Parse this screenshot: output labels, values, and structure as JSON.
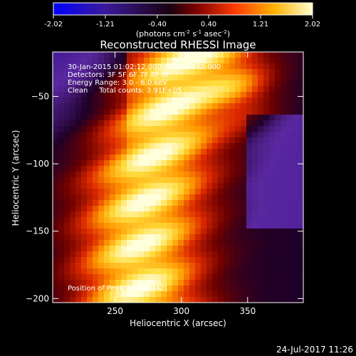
{
  "chart_data": {
    "type": "heatmap",
    "title": "Reconstructed RHESSI Image",
    "xlabel": "Heliocentric X (arcsec)",
    "ylabel": "Heliocentric Y (arcsec)",
    "x_range": [
      203,
      392
    ],
    "y_range": [
      -203,
      -17
    ],
    "x_ticks": [
      250,
      300,
      350
    ],
    "y_ticks": [
      -50,
      -100,
      -150,
      -200
    ],
    "colorbar": {
      "min": -2.02,
      "max": 2.02,
      "ticks": [
        "-2.02",
        "-1.21",
        "-0.40",
        "0.40",
        "1.21",
        "2.02"
      ],
      "label": "(photons cm",
      "label_sup1": "-2",
      "label_mid": " s",
      "label_sup2": "-1",
      "label_mid2": " asec",
      "label_sup3": "-2",
      "label_end": ")"
    },
    "annotations": {
      "line1": "30-Jan-2015 01:02:12.000 to 01:02:12.000",
      "line2": "Detectors: 3F 5F 6F 7F 8F 9F",
      "line3": "Energy Range: 3.0 - 6.0 keV",
      "line4": "Clean     Total counts: 3.91E+05",
      "peak": "Position of Peak = [340,-42]"
    },
    "peak": {
      "x": 340,
      "y": -42
    },
    "colormap": "Blue-purple-red-yellow-white"
  },
  "footer_timestamp": "24-Jul-2017 11:26"
}
